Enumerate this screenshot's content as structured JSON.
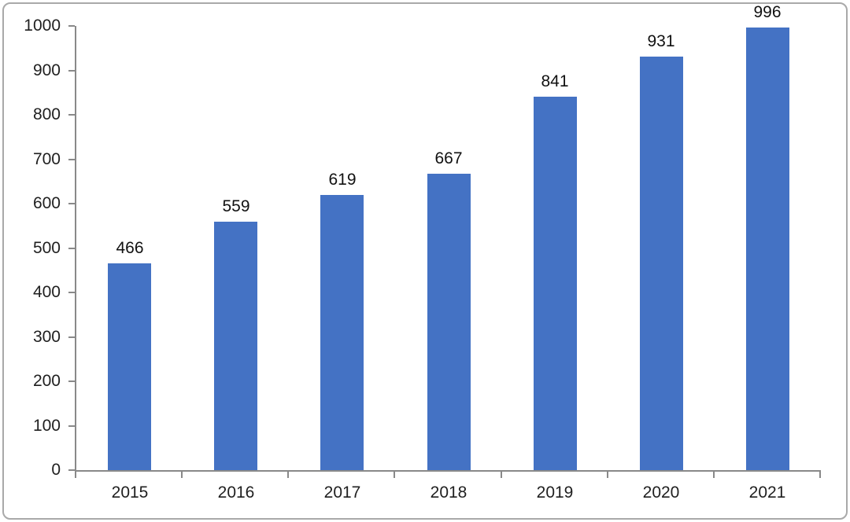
{
  "chart_data": {
    "type": "bar",
    "categories": [
      "2015",
      "2016",
      "2017",
      "2018",
      "2019",
      "2020",
      "2021"
    ],
    "values": [
      466,
      559,
      619,
      667,
      841,
      931,
      996
    ],
    "title": "",
    "xlabel": "",
    "ylabel": "",
    "ylim": [
      0,
      1000
    ],
    "ytick_step": 100,
    "ytick_labels": [
      "0",
      "100",
      "200",
      "300",
      "400",
      "500",
      "600",
      "700",
      "800",
      "900",
      "1000"
    ],
    "grid": false,
    "legend_position": "none",
    "data_labels": true,
    "bar_color": "#4472C4",
    "axis_color": "#898989",
    "text_color": "#1f1f1f"
  },
  "frame": {
    "border_color": "#a9a9a9",
    "background_color": "#ffffff"
  }
}
